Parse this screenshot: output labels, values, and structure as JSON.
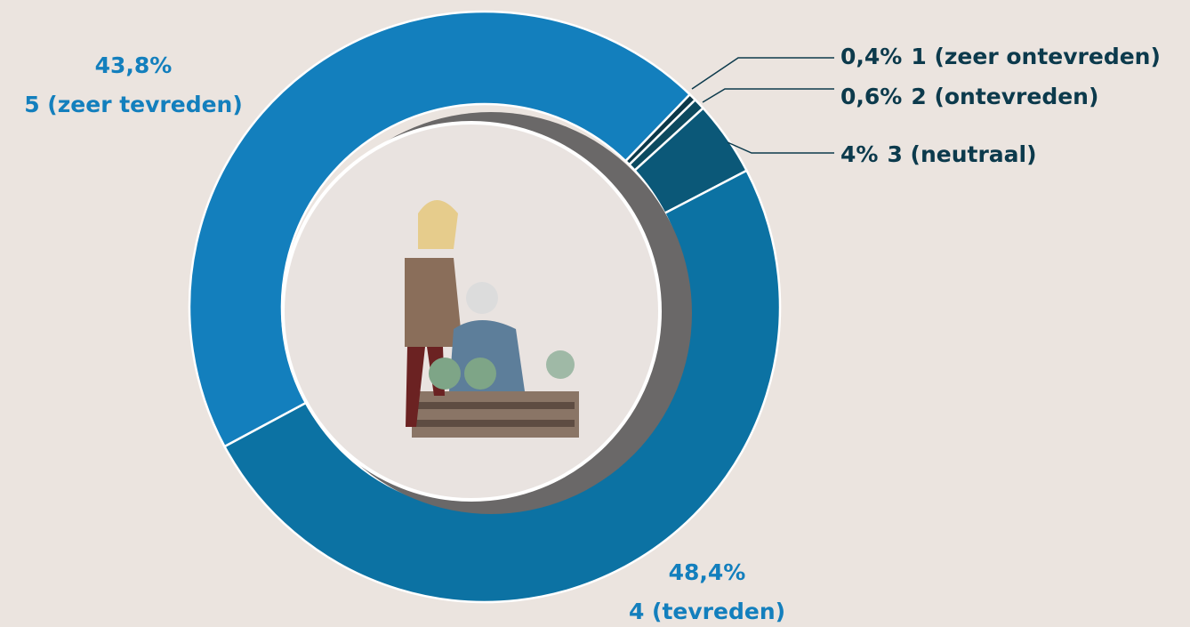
{
  "chart_data": {
    "type": "donut",
    "categories": [
      "1 (zeer ontevreden)",
      "2 (ontevreden)",
      "3 (neutraal)",
      "4 (tevreden)",
      "5 (zeer tevreden)"
    ],
    "values": [
      0.4,
      0.6,
      4,
      48.4,
      43.8
    ],
    "value_labels": [
      "0,4%",
      "0,6%",
      "4%",
      "48,4%",
      "43,8%"
    ],
    "colors": [
      "#0c3848",
      "#0d4a5f",
      "#0b5878",
      "#0c72a3",
      "#137fbd"
    ],
    "label_colors": [
      "#0c3a4c",
      "#0c3a4c",
      "#0c3a4c",
      "#137fbd",
      "#137fbd"
    ]
  }
}
